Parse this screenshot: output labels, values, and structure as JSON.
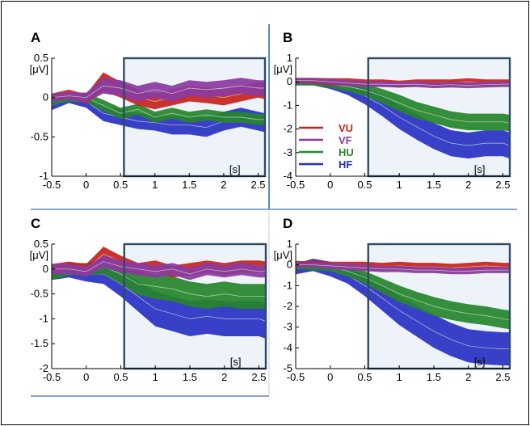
{
  "colors": {
    "VU": "#c8241f",
    "VF": "#8a3aa0",
    "HU": "#27852d",
    "HF": "#2a31c4",
    "frame": "#2d4a66",
    "window_fill": "#eef3fa",
    "divider": "#5b88bf"
  },
  "legend": {
    "entries": [
      {
        "name": "VU",
        "color": "#c8241f"
      },
      {
        "name": "VF",
        "color": "#8a3aa0"
      },
      {
        "name": "HU",
        "color": "#27852d"
      },
      {
        "name": "HF",
        "color": "#2a31c4"
      }
    ]
  },
  "chart_data": [
    {
      "type": "area",
      "panel": "A",
      "ylabel": "[μV]",
      "xunit": "[s]",
      "xlim": [
        -0.5,
        2.6
      ],
      "ylim": [
        -1,
        0.5
      ],
      "xticks": [
        "-0.5",
        "0",
        "0.5",
        "1",
        "1.5",
        "2",
        "2.5"
      ],
      "yticks": [
        "0.5",
        "0",
        "-0.5",
        "-1"
      ],
      "window": [
        0.55,
        2.6
      ],
      "x": [
        -0.5,
        -0.25,
        0,
        0.25,
        0.5,
        0.75,
        1,
        1.25,
        1.5,
        1.75,
        2,
        2.25,
        2.5,
        2.6
      ],
      "series": [
        {
          "name": "VU",
          "mean": [
            0.0,
            0.05,
            -0.02,
            0.2,
            0.1,
            0.0,
            -0.05,
            0.0,
            0.05,
            0.03,
            0.0,
            0.05,
            0.1,
            0.08
          ],
          "half_width": [
            0.05,
            0.05,
            0.06,
            0.12,
            0.1,
            0.1,
            0.1,
            0.1,
            0.1,
            0.1,
            0.1,
            0.1,
            0.1,
            0.1
          ]
        },
        {
          "name": "VF",
          "mean": [
            0.0,
            0.02,
            0.0,
            0.15,
            0.12,
            0.05,
            0.1,
            0.05,
            0.12,
            0.1,
            0.12,
            0.15,
            0.12,
            0.12
          ],
          "half_width": [
            0.05,
            0.05,
            0.06,
            0.1,
            0.1,
            0.1,
            0.1,
            0.1,
            0.1,
            0.1,
            0.1,
            0.1,
            0.1,
            0.1
          ]
        },
        {
          "name": "HU",
          "mean": [
            -0.05,
            0.0,
            0.0,
            -0.1,
            -0.2,
            -0.15,
            -0.25,
            -0.2,
            -0.25,
            -0.22,
            -0.25,
            -0.25,
            -0.28,
            -0.28
          ],
          "half_width": [
            0.05,
            0.05,
            0.06,
            0.07,
            0.07,
            0.07,
            0.07,
            0.07,
            0.07,
            0.07,
            0.07,
            0.07,
            0.07,
            0.07
          ]
        },
        {
          "name": "HF",
          "mean": [
            -0.1,
            0.0,
            -0.05,
            -0.2,
            -0.25,
            -0.3,
            -0.32,
            -0.35,
            -0.35,
            -0.38,
            -0.3,
            -0.25,
            -0.3,
            -0.32
          ],
          "half_width": [
            0.06,
            0.07,
            0.08,
            0.1,
            0.1,
            0.1,
            0.1,
            0.12,
            0.12,
            0.12,
            0.12,
            0.12,
            0.12,
            0.12
          ]
        }
      ]
    },
    {
      "type": "area",
      "panel": "B",
      "ylabel": "[μV]",
      "xunit": "[s]",
      "xlim": [
        -0.5,
        2.6
      ],
      "ylim": [
        -4,
        1
      ],
      "xticks": [
        "-0.5",
        "0",
        "0.5",
        "1",
        "1.5",
        "2",
        "2.5"
      ],
      "yticks": [
        "1",
        "0",
        "-1",
        "-2",
        "-3",
        "-4"
      ],
      "window": [
        0.55,
        2.6
      ],
      "x": [
        -0.5,
        -0.25,
        0,
        0.25,
        0.5,
        0.75,
        1,
        1.25,
        1.5,
        1.75,
        2,
        2.25,
        2.5,
        2.6
      ],
      "series": [
        {
          "name": "VU",
          "mean": [
            0.05,
            0.05,
            0.0,
            0.0,
            -0.05,
            -0.05,
            -0.1,
            -0.05,
            -0.05,
            -0.05,
            0.0,
            -0.05,
            -0.05,
            -0.05
          ],
          "half_width": [
            0.12,
            0.12,
            0.15,
            0.15,
            0.15,
            0.15,
            0.15,
            0.15,
            0.15,
            0.15,
            0.15,
            0.15,
            0.15,
            0.15
          ]
        },
        {
          "name": "VF",
          "mean": [
            0.05,
            0.05,
            0.0,
            -0.05,
            -0.1,
            -0.1,
            -0.12,
            -0.1,
            -0.15,
            -0.12,
            -0.15,
            -0.12,
            -0.1,
            -0.1
          ],
          "half_width": [
            0.1,
            0.1,
            0.12,
            0.12,
            0.12,
            0.12,
            0.12,
            0.12,
            0.12,
            0.12,
            0.12,
            0.12,
            0.12,
            0.12
          ]
        },
        {
          "name": "HU",
          "mean": [
            0.0,
            0.0,
            -0.1,
            -0.2,
            -0.35,
            -0.6,
            -0.9,
            -1.2,
            -1.4,
            -1.6,
            -1.7,
            -1.7,
            -1.7,
            -1.75
          ],
          "half_width": [
            0.15,
            0.15,
            0.15,
            0.2,
            0.25,
            0.3,
            0.35,
            0.35,
            0.35,
            0.35,
            0.35,
            0.35,
            0.35,
            0.35
          ]
        },
        {
          "name": "HF",
          "mean": [
            0.0,
            0.0,
            -0.1,
            -0.3,
            -0.6,
            -1.0,
            -1.5,
            -1.9,
            -2.3,
            -2.6,
            -2.7,
            -2.6,
            -2.6,
            -2.7
          ],
          "half_width": [
            0.15,
            0.15,
            0.2,
            0.25,
            0.35,
            0.45,
            0.5,
            0.55,
            0.55,
            0.55,
            0.55,
            0.55,
            0.55,
            0.55
          ]
        }
      ]
    },
    {
      "type": "area",
      "panel": "C",
      "ylabel": "[μV]",
      "xunit": "[s]",
      "xlim": [
        -0.5,
        2.6
      ],
      "ylim": [
        -2,
        0.5
      ],
      "xticks": [
        "-0.5",
        "0",
        "0.5",
        "1",
        "1.5",
        "2",
        "2.5"
      ],
      "yticks": [
        "0.5",
        "0",
        "-0.5",
        "-1",
        "-1.5",
        "-2"
      ],
      "window": [
        0.55,
        2.6
      ],
      "x": [
        -0.5,
        -0.25,
        0,
        0.25,
        0.5,
        0.75,
        1,
        1.25,
        1.5,
        1.75,
        2,
        2.25,
        2.5,
        2.6
      ],
      "series": [
        {
          "name": "VU",
          "mean": [
            0.0,
            0.05,
            0.0,
            0.3,
            0.15,
            0.0,
            0.05,
            -0.05,
            0.0,
            0.05,
            0.0,
            0.05,
            0.05,
            0.03
          ],
          "half_width": [
            0.1,
            0.1,
            0.1,
            0.15,
            0.12,
            0.12,
            0.12,
            0.12,
            0.12,
            0.12,
            0.12,
            0.12,
            0.12,
            0.12
          ]
        },
        {
          "name": "VF",
          "mean": [
            0.0,
            0.0,
            -0.05,
            0.15,
            0.05,
            0.0,
            -0.05,
            0.0,
            -0.1,
            0.0,
            -0.05,
            0.0,
            -0.05,
            -0.05
          ],
          "half_width": [
            0.1,
            0.1,
            0.1,
            0.12,
            0.12,
            0.12,
            0.12,
            0.12,
            0.12,
            0.12,
            0.12,
            0.12,
            0.12,
            0.12
          ]
        },
        {
          "name": "HU",
          "mean": [
            -0.1,
            0.0,
            0.0,
            0.05,
            -0.1,
            -0.3,
            -0.35,
            -0.4,
            -0.5,
            -0.55,
            -0.5,
            -0.55,
            -0.55,
            -0.55
          ],
          "half_width": [
            0.12,
            0.12,
            0.12,
            0.15,
            0.2,
            0.22,
            0.25,
            0.25,
            0.25,
            0.25,
            0.25,
            0.25,
            0.25,
            0.25
          ]
        },
        {
          "name": "HF",
          "mean": [
            -0.1,
            -0.05,
            -0.1,
            -0.1,
            -0.3,
            -0.55,
            -0.8,
            -0.9,
            -1.0,
            -0.95,
            -1.0,
            -1.0,
            -1.0,
            -1.05
          ],
          "half_width": [
            0.12,
            0.12,
            0.15,
            0.2,
            0.25,
            0.3,
            0.35,
            0.35,
            0.35,
            0.35,
            0.35,
            0.35,
            0.35,
            0.35
          ]
        }
      ]
    },
    {
      "type": "area",
      "panel": "D",
      "ylabel": "[μV]",
      "xunit": "[s]",
      "xlim": [
        -0.5,
        2.6
      ],
      "ylim": [
        -5,
        1
      ],
      "xticks": [
        "-0.5",
        "0",
        "0.5",
        "1",
        "1.5",
        "2",
        "2.5"
      ],
      "yticks": [
        "1",
        "0",
        "-1",
        "-2",
        "-3",
        "-4",
        "-5"
      ],
      "window": [
        0.55,
        2.6
      ],
      "x": [
        -0.5,
        -0.25,
        0,
        0.25,
        0.5,
        0.75,
        1,
        1.25,
        1.5,
        1.75,
        2,
        2.25,
        2.5,
        2.6
      ],
      "series": [
        {
          "name": "VU",
          "mean": [
            0.0,
            0.05,
            0.0,
            0.0,
            -0.05,
            -0.1,
            -0.05,
            -0.1,
            -0.1,
            -0.15,
            -0.1,
            -0.05,
            -0.1,
            -0.1
          ],
          "half_width": [
            0.15,
            0.15,
            0.15,
            0.15,
            0.2,
            0.2,
            0.2,
            0.2,
            0.2,
            0.2,
            0.2,
            0.2,
            0.2,
            0.2
          ]
        },
        {
          "name": "VF",
          "mean": [
            0.0,
            0.0,
            -0.05,
            -0.1,
            -0.15,
            -0.2,
            -0.2,
            -0.25,
            -0.25,
            -0.3,
            -0.3,
            -0.25,
            -0.25,
            -0.25
          ],
          "half_width": [
            0.12,
            0.12,
            0.15,
            0.15,
            0.15,
            0.15,
            0.15,
            0.15,
            0.15,
            0.15,
            0.15,
            0.15,
            0.15,
            0.15
          ]
        },
        {
          "name": "HU",
          "mean": [
            0.0,
            -0.05,
            -0.1,
            -0.3,
            -0.6,
            -1.0,
            -1.4,
            -1.7,
            -2.0,
            -2.2,
            -2.35,
            -2.45,
            -2.6,
            -2.65
          ],
          "half_width": [
            0.2,
            0.2,
            0.2,
            0.25,
            0.3,
            0.35,
            0.4,
            0.4,
            0.45,
            0.45,
            0.45,
            0.45,
            0.45,
            0.45
          ]
        },
        {
          "name": "HF",
          "mean": [
            -0.2,
            0.0,
            -0.2,
            -0.5,
            -1.0,
            -1.6,
            -2.2,
            -2.7,
            -3.2,
            -3.6,
            -3.9,
            -4.0,
            -4.05,
            -4.05
          ],
          "half_width": [
            0.25,
            0.3,
            0.35,
            0.4,
            0.5,
            0.6,
            0.7,
            0.75,
            0.8,
            0.8,
            0.8,
            0.8,
            0.8,
            0.8
          ]
        }
      ]
    }
  ]
}
